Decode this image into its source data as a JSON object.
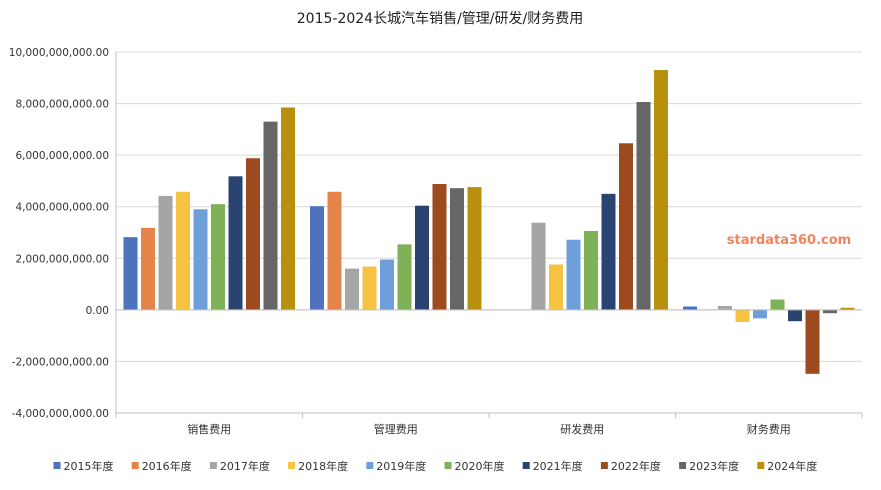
{
  "chart_data": {
    "type": "bar",
    "title": "2015-2024长城汽车销售/管理/研发/财务费用",
    "watermark": "stardata360.com",
    "categories": [
      "销售费用",
      "管理费用",
      "研发费用",
      "财务费用"
    ],
    "y_ticks": [
      "10,000,000,000.00",
      "8,000,000,000.00",
      "6,000,000,000.00",
      "4,000,000,000.00",
      "2,000,000,000.00",
      "0.00",
      "-2,000,000,000.00",
      "-4,000,000,000.00"
    ],
    "ylim": [
      -4000000000,
      10000000000
    ],
    "grid": true,
    "legend_position": "bottom",
    "series": [
      {
        "name": "2015年度",
        "color": "#4e72be",
        "values": [
          2820000000,
          4020000000,
          null,
          130000000
        ]
      },
      {
        "name": "2016年度",
        "color": "#e4844a",
        "values": [
          3180000000,
          4580000000,
          null,
          0
        ]
      },
      {
        "name": "2017年度",
        "color": "#a5a5a5",
        "values": [
          4420000000,
          1600000000,
          3380000000,
          150000000
        ]
      },
      {
        "name": "2018年度",
        "color": "#f5c242",
        "values": [
          4580000000,
          1680000000,
          1760000000,
          -470000000
        ]
      },
      {
        "name": "2019年度",
        "color": "#6f9fd9",
        "values": [
          3900000000,
          1950000000,
          2720000000,
          -330000000
        ]
      },
      {
        "name": "2020年度",
        "color": "#7fb158",
        "values": [
          4100000000,
          2540000000,
          3060000000,
          400000000
        ]
      },
      {
        "name": "2021年度",
        "color": "#2b4370",
        "values": [
          5180000000,
          4040000000,
          4500000000,
          -440000000
        ]
      },
      {
        "name": "2022年度",
        "color": "#9c4a1e",
        "values": [
          5880000000,
          4880000000,
          6460000000,
          -2480000000
        ]
      },
      {
        "name": "2023年度",
        "color": "#666666",
        "values": [
          7300000000,
          4720000000,
          8060000000,
          -130000000
        ]
      },
      {
        "name": "2024年度",
        "color": "#b8900f",
        "values": [
          7850000000,
          4760000000,
          9300000000,
          80000000
        ]
      }
    ]
  }
}
